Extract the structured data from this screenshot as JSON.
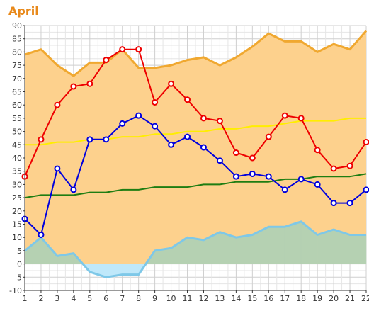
{
  "chart_data": {
    "type": "line",
    "title": "April",
    "xlabel": "",
    "ylabel": "",
    "x": [
      1,
      2,
      3,
      4,
      5,
      6,
      7,
      8,
      9,
      10,
      11,
      12,
      13,
      14,
      15,
      16,
      17,
      18,
      19,
      20,
      21,
      22
    ],
    "x_tick_labels": [
      "1",
      "2",
      "3",
      "4",
      "5",
      "6",
      "7",
      "8",
      "9",
      "10",
      "11",
      "12",
      "13",
      "14",
      "15",
      "16",
      "17",
      "18",
      "19",
      "20",
      "21",
      "22"
    ],
    "ylim": [
      -10,
      90
    ],
    "y_ticks": [
      -10,
      -5,
      0,
      5,
      10,
      15,
      20,
      25,
      30,
      35,
      40,
      45,
      50,
      55,
      60,
      65,
      70,
      75,
      80,
      85,
      90
    ],
    "grid": true,
    "legend": "none",
    "series": [
      {
        "kind": "area",
        "color": "#f0a830",
        "fill": "#fdd18d",
        "values": [
          79,
          81,
          75,
          71,
          76,
          76,
          81,
          74,
          74,
          75,
          77,
          78,
          75,
          78,
          82,
          87,
          84,
          84,
          80,
          83,
          81,
          88
        ]
      },
      {
        "kind": "line",
        "color": "#ffee00",
        "values": [
          45,
          45,
          46,
          46,
          47,
          47,
          48,
          48,
          49,
          49,
          50,
          50,
          51,
          51,
          52,
          52,
          53,
          54,
          54,
          54,
          55,
          55
        ]
      },
      {
        "kind": "line",
        "color": "#1e7d12",
        "values": [
          25,
          26,
          26,
          26,
          27,
          27,
          28,
          28,
          29,
          29,
          29,
          30,
          30,
          31,
          31,
          31,
          32,
          32,
          33,
          33,
          33,
          34
        ]
      },
      {
        "kind": "area",
        "color": "#7ec8e8",
        "fill_positive": "#b5d1b2",
        "fill_negative": "#bfe8fa",
        "values": [
          5,
          10,
          3,
          4,
          -3,
          -5,
          -4,
          -4,
          5,
          6,
          10,
          9,
          12,
          10,
          11,
          14,
          14,
          16,
          11,
          13,
          11,
          11
        ]
      },
      {
        "kind": "line",
        "color": "#ee0000",
        "markers": true,
        "values": [
          33,
          47,
          60,
          67,
          68,
          77,
          81,
          81,
          61,
          68,
          62,
          55,
          54,
          42,
          40,
          48,
          56,
          55,
          43,
          36,
          37,
          46
        ]
      },
      {
        "kind": "line",
        "color": "#0000dd",
        "markers": true,
        "values": [
          17,
          11,
          36,
          28,
          47,
          47,
          53,
          56,
          52,
          45,
          48,
          44,
          39,
          33,
          34,
          33,
          28,
          32,
          30,
          23,
          23,
          28
        ]
      }
    ]
  }
}
